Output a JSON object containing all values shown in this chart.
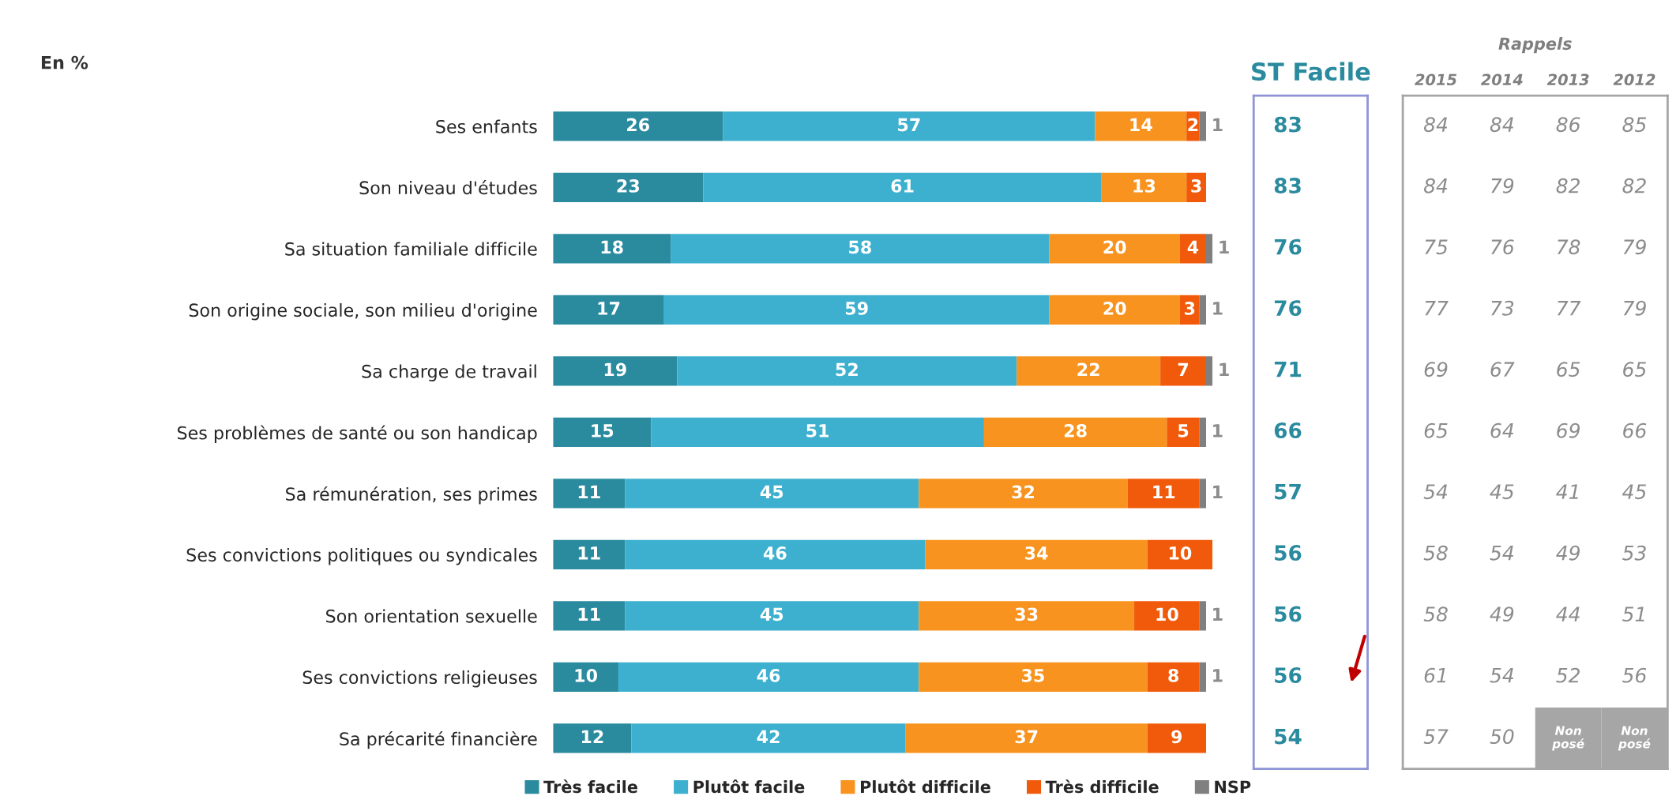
{
  "chart_data": {
    "type": "bar",
    "orientation": "horizontal",
    "stacked": true,
    "data_labels": true,
    "legend": "bottom",
    "tick_labels": "y",
    "annotations": [
      "En %",
      "ST Facile",
      "83",
      "83",
      "76",
      "76",
      "71",
      "66",
      "57",
      "56",
      "56",
      "56",
      "54",
      "Rappels",
      "2015",
      "2014",
      "2013",
      "2012",
      "84",
      "84",
      "86",
      "85",
      "84",
      "79",
      "82",
      "82",
      "75",
      "76",
      "78",
      "79",
      "77",
      "73",
      "77",
      "79",
      "69",
      "67",
      "65",
      "65",
      "65",
      "64",
      "69",
      "66",
      "54",
      "45",
      "41",
      "45",
      "58",
      "54",
      "49",
      "53",
      "58",
      "49",
      "44",
      "51",
      "61",
      "54",
      "52",
      "56",
      "57",
      "50",
      "Non posé",
      "Non posé"
    ],
    "categories": [
      "Ses enfants",
      "Son niveau d'études",
      "Sa situation familiale difficile",
      "Son origine sociale, son milieu d'origine",
      "Sa charge de travail",
      "Ses problèmes de santé ou son handicap",
      "Sa rémunération, ses primes",
      "Ses convictions politiques ou syndicales",
      "Son orientation sexuelle",
      "Ses convictions religieuses",
      "Sa précarité financière"
    ],
    "series": [
      {
        "name": "Très facile",
        "color": "#2a8a9e",
        "values": [
          26,
          23,
          18,
          17,
          19,
          15,
          11,
          11,
          11,
          10,
          12
        ]
      },
      {
        "name": "Plutôt facile",
        "color": "#3db0cf",
        "values": [
          57,
          61,
          58,
          59,
          52,
          51,
          45,
          46,
          45,
          46,
          42
        ]
      },
      {
        "name": "Plutôt difficile",
        "color": "#f7931e",
        "values": [
          14,
          13,
          20,
          20,
          22,
          28,
          32,
          34,
          33,
          35,
          37
        ]
      },
      {
        "name": "Très difficile",
        "color": "#f05a0a",
        "values": [
          2,
          3,
          4,
          3,
          7,
          5,
          11,
          10,
          10,
          8,
          9
        ]
      },
      {
        "name": "NSP",
        "color": "#808080",
        "values": [
          1,
          null,
          1,
          1,
          1,
          1,
          1,
          null,
          1,
          1,
          null
        ]
      }
    ]
  }
}
